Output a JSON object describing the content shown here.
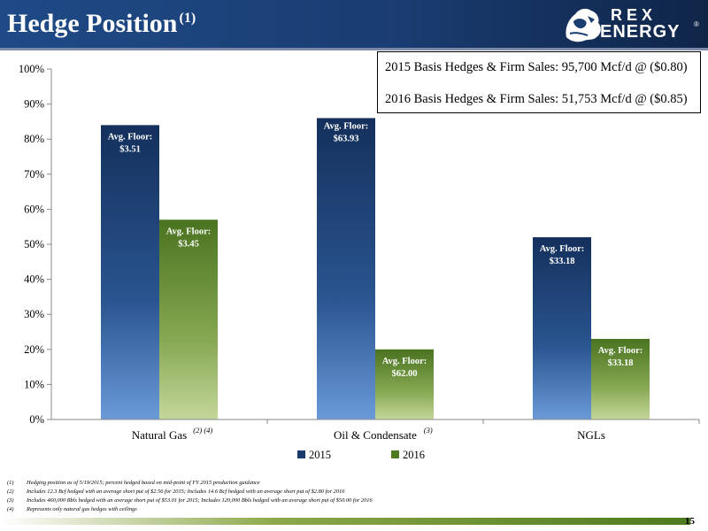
{
  "header": {
    "title": "Hedge Position",
    "title_sup": "(1)",
    "logo_line1": "REX",
    "logo_line2": "ENERGY",
    "logo_reg": "®"
  },
  "infobox": {
    "line1": "2015 Basis Hedges & Firm Sales: 95,700 Mcf/d @ ($0.80)",
    "line2": "2016 Basis Hedges & Firm Sales: 51,753 Mcf/d @ ($0.85)"
  },
  "chart_data": {
    "type": "bar",
    "categories": [
      "Natural Gas",
      "Oil & Condensate",
      "NGLs"
    ],
    "category_sups": [
      "(2) (4)",
      "(3)",
      ""
    ],
    "series": [
      {
        "name": "2015",
        "values": [
          84,
          86,
          52
        ],
        "labels": [
          "Avg. Floor:\n$3.51",
          "Avg. Floor:\n$63.93",
          "Avg. Floor:\n$33.18"
        ],
        "color": "#1a3a6b"
      },
      {
        "name": "2016",
        "values": [
          57,
          20,
          23
        ],
        "labels": [
          "Avg. Floor:\n$3.45",
          "Avg. Floor:\n$62.00",
          "Avg. Floor:\n$33.18"
        ],
        "color": "#4f7a22"
      }
    ],
    "y_ticks": [
      "0%",
      "10%",
      "20%",
      "30%",
      "40%",
      "50%",
      "60%",
      "70%",
      "80%",
      "90%",
      "100%"
    ],
    "ylim": [
      0,
      100
    ],
    "legend_position": "bottom"
  },
  "footnotes": [
    {
      "num": "(1)",
      "text": "Hedging position as of 5/19/2015; percent hedged based on mid-point of FY 2015 production guidance"
    },
    {
      "num": "(2)",
      "text": "Includes 12.3 Bcf hedged with an average short put of $2.56 for 2015; Includes 14.6 Bcf hedged with an average short put of $2.80 for 2016"
    },
    {
      "num": "(3)",
      "text": "Includes 460,000 Bbls hedged with an average short put of $53.01 for 2015; Includes 120,000 Bbls hedged with an average short put of $50.00 for 2016"
    },
    {
      "num": "(4)",
      "text": "Represents only natural gas hedges with ceilings"
    }
  ],
  "page_number": "15"
}
